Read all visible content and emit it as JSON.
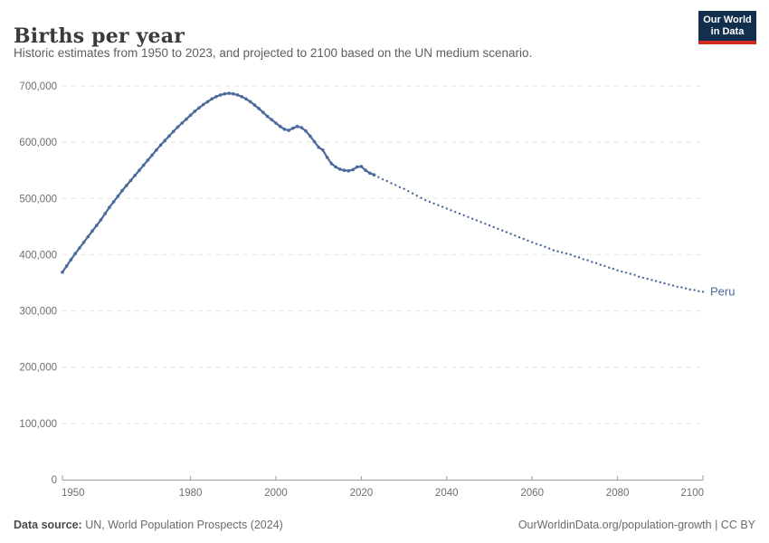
{
  "header": {
    "title": "Births per year",
    "subtitle": "Historic estimates from 1950 to 2023, and projected to 2100 based on the UN medium scenario.",
    "logo": {
      "line1": "Our World",
      "line2": "in Data",
      "bg_color": "#12304d",
      "accent_color": "#d42b1f"
    }
  },
  "footer": {
    "source_label": "Data source:",
    "source_value": " UN, World Population Prospects (2024)",
    "credit": "OurWorldinData.org/population-growth | CC BY"
  },
  "chart_data": {
    "type": "line",
    "title": "Births per year",
    "entity_label": "Peru",
    "line_color": "#4C6A9C",
    "background": "#ffffff",
    "grid": "horizontal-dashed",
    "legend_position": "end-of-line-label",
    "x_axis": {
      "min": 1950,
      "max": 2100,
      "ticks": [
        1950,
        1980,
        2000,
        2020,
        2040,
        2060,
        2080,
        2100
      ]
    },
    "y_axis": {
      "min": 0,
      "max": 700000,
      "ticks": [
        0,
        100000,
        200000,
        300000,
        400000,
        500000,
        600000,
        700000
      ],
      "format": "comma"
    },
    "series": [
      {
        "name": "Peru — historic estimates",
        "style": "solid-line-with-markers",
        "start_year": 1950,
        "end_year": 2023,
        "values": [
          369000,
          380000,
          391000,
          402000,
          412000,
          422000,
          432000,
          442000,
          452000,
          462000,
          473000,
          484000,
          494000,
          504000,
          514000,
          523000,
          532000,
          541000,
          550000,
          559000,
          568000,
          577000,
          586000,
          595000,
          603000,
          611000,
          619000,
          627000,
          634000,
          641000,
          648000,
          655000,
          661000,
          667000,
          672000,
          677000,
          681000,
          684000,
          686000,
          687000,
          686000,
          684000,
          681000,
          677000,
          672000,
          666000,
          660000,
          653000,
          646000,
          640000,
          634000,
          628000,
          623000,
          621000,
          625000,
          628000,
          626000,
          620000,
          611000,
          601000,
          591000,
          586000,
          573000,
          562000,
          556000,
          552000,
          550000,
          549000,
          551000,
          556000,
          557000,
          550000,
          545000,
          542000
        ]
      },
      {
        "name": "Peru — UN medium scenario projection",
        "style": "dotted",
        "start_year": 2024,
        "end_year": 2100,
        "values": [
          538000,
          534000,
          531000,
          527000,
          524000,
          520000,
          517000,
          513000,
          509000,
          505000,
          501000,
          497000,
          494000,
          491000,
          488000,
          485000,
          482000,
          479000,
          476000,
          473000,
          470000,
          467000,
          464000,
          461000,
          458000,
          455000,
          452000,
          449000,
          446000,
          443000,
          440000,
          437000,
          434000,
          431000,
          428000,
          425000,
          422000,
          419000,
          417000,
          414000,
          411000,
          408000,
          406000,
          404000,
          402000,
          400000,
          397000,
          395000,
          392000,
          390000,
          387000,
          385000,
          382000,
          380000,
          377000,
          375000,
          372000,
          370000,
          368000,
          366000,
          364000,
          361000,
          359000,
          357000,
          355000,
          353000,
          351000,
          349000,
          347000,
          345000,
          343000,
          342000,
          340000,
          338000,
          337000,
          335000,
          334000
        ]
      }
    ]
  }
}
